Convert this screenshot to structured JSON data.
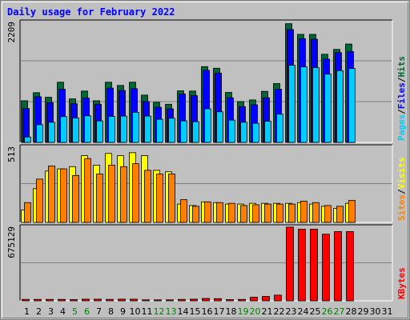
{
  "title": "Daily usage for February 2022",
  "colors": {
    "hits": "#006633",
    "files": "#0000ff",
    "pages": "#00ccff",
    "visits": "#ffff00",
    "sites": "#ff8000",
    "kbytes": "#ff0000",
    "weekday_label": "#000000",
    "weekend_label": "#008000"
  },
  "chart_data": [
    {
      "type": "bar",
      "panel": "hits-files-pages",
      "max_label": "2209",
      "ylim": [
        0,
        2209
      ],
      "grid": true,
      "legend": [
        "Pages",
        "/",
        "Files",
        "/",
        "Hits"
      ],
      "categories": [
        "1",
        "2",
        "3",
        "4",
        "5",
        "6",
        "7",
        "8",
        "9",
        "10",
        "11",
        "12",
        "13",
        "14",
        "15",
        "16",
        "17",
        "18",
        "19",
        "20",
        "21",
        "22",
        "23",
        "24",
        "25",
        "26",
        "27",
        "28",
        "29",
        "30",
        "31"
      ],
      "series": [
        {
          "name": "Hits",
          "values": [
            775,
            925,
            840,
            1120,
            810,
            955,
            775,
            1120,
            1060,
            1120,
            880,
            745,
            710,
            960,
            955,
            1410,
            1380,
            930,
            760,
            790,
            950,
            1095,
            2209,
            2010,
            2010,
            1640,
            1730,
            1830,
            0,
            0,
            0
          ]
        },
        {
          "name": "Files",
          "values": [
            630,
            850,
            740,
            990,
            720,
            825,
            710,
            1010,
            965,
            1000,
            760,
            655,
            625,
            900,
            870,
            1340,
            1290,
            830,
            665,
            700,
            830,
            990,
            2100,
            1930,
            1920,
            1550,
            1670,
            1690,
            0,
            0,
            0
          ]
        },
        {
          "name": "Pages",
          "values": [
            100,
            330,
            375,
            480,
            455,
            495,
            400,
            485,
            490,
            560,
            490,
            430,
            450,
            400,
            385,
            625,
            570,
            415,
            375,
            355,
            395,
            525,
            1435,
            1405,
            1390,
            1270,
            1335,
            1375,
            0,
            0,
            0
          ]
        }
      ]
    },
    {
      "type": "bar",
      "panel": "visits-sites",
      "max_label": "513",
      "ylim": [
        0,
        513
      ],
      "grid": true,
      "legend": [
        "Sites",
        "/",
        "Visits"
      ],
      "categories": [
        "1",
        "2",
        "3",
        "4",
        "5",
        "6",
        "7",
        "8",
        "9",
        "10",
        "11",
        "12",
        "13",
        "14",
        "15",
        "16",
        "17",
        "18",
        "19",
        "20",
        "21",
        "22",
        "23",
        "24",
        "25",
        "26",
        "27",
        "28",
        "29",
        "30",
        "31"
      ],
      "series": [
        {
          "name": "Visits",
          "values": [
            85,
            230,
            350,
            365,
            380,
            455,
            390,
            470,
            455,
            475,
            455,
            355,
            345,
            125,
            115,
            140,
            135,
            125,
            125,
            130,
            130,
            130,
            130,
            135,
            125,
            110,
            95,
            130,
            0,
            0,
            0
          ]
        },
        {
          "name": "Sites",
          "values": [
            135,
            295,
            385,
            365,
            320,
            435,
            330,
            390,
            380,
            400,
            355,
            330,
            330,
            155,
            110,
            140,
            135,
            130,
            115,
            120,
            125,
            125,
            125,
            145,
            135,
            115,
            110,
            150,
            0,
            0,
            0
          ]
        }
      ]
    },
    {
      "type": "bar",
      "panel": "kbytes",
      "max_label": "675129",
      "ylim": [
        0,
        675129
      ],
      "grid": true,
      "legend": [
        "KBytes"
      ],
      "categories": [
        "1",
        "2",
        "3",
        "4",
        "5",
        "6",
        "7",
        "8",
        "9",
        "10",
        "11",
        "12",
        "13",
        "14",
        "15",
        "16",
        "17",
        "18",
        "19",
        "20",
        "21",
        "22",
        "23",
        "24",
        "25",
        "26",
        "27",
        "28",
        "29",
        "30",
        "31"
      ],
      "series": [
        {
          "name": "KBytes",
          "values": [
            13000,
            13000,
            13000,
            13000,
            11000,
            15000,
            15000,
            13000,
            15000,
            15000,
            9000,
            9000,
            9000,
            13000,
            15000,
            22000,
            20000,
            11000,
            13000,
            33000,
            40000,
            52000,
            675129,
            656000,
            656000,
            610000,
            634000,
            634000,
            0,
            0,
            0
          ]
        }
      ]
    }
  ],
  "weekend_days": [
    5,
    6,
    12,
    13,
    19,
    20,
    26,
    27
  ]
}
